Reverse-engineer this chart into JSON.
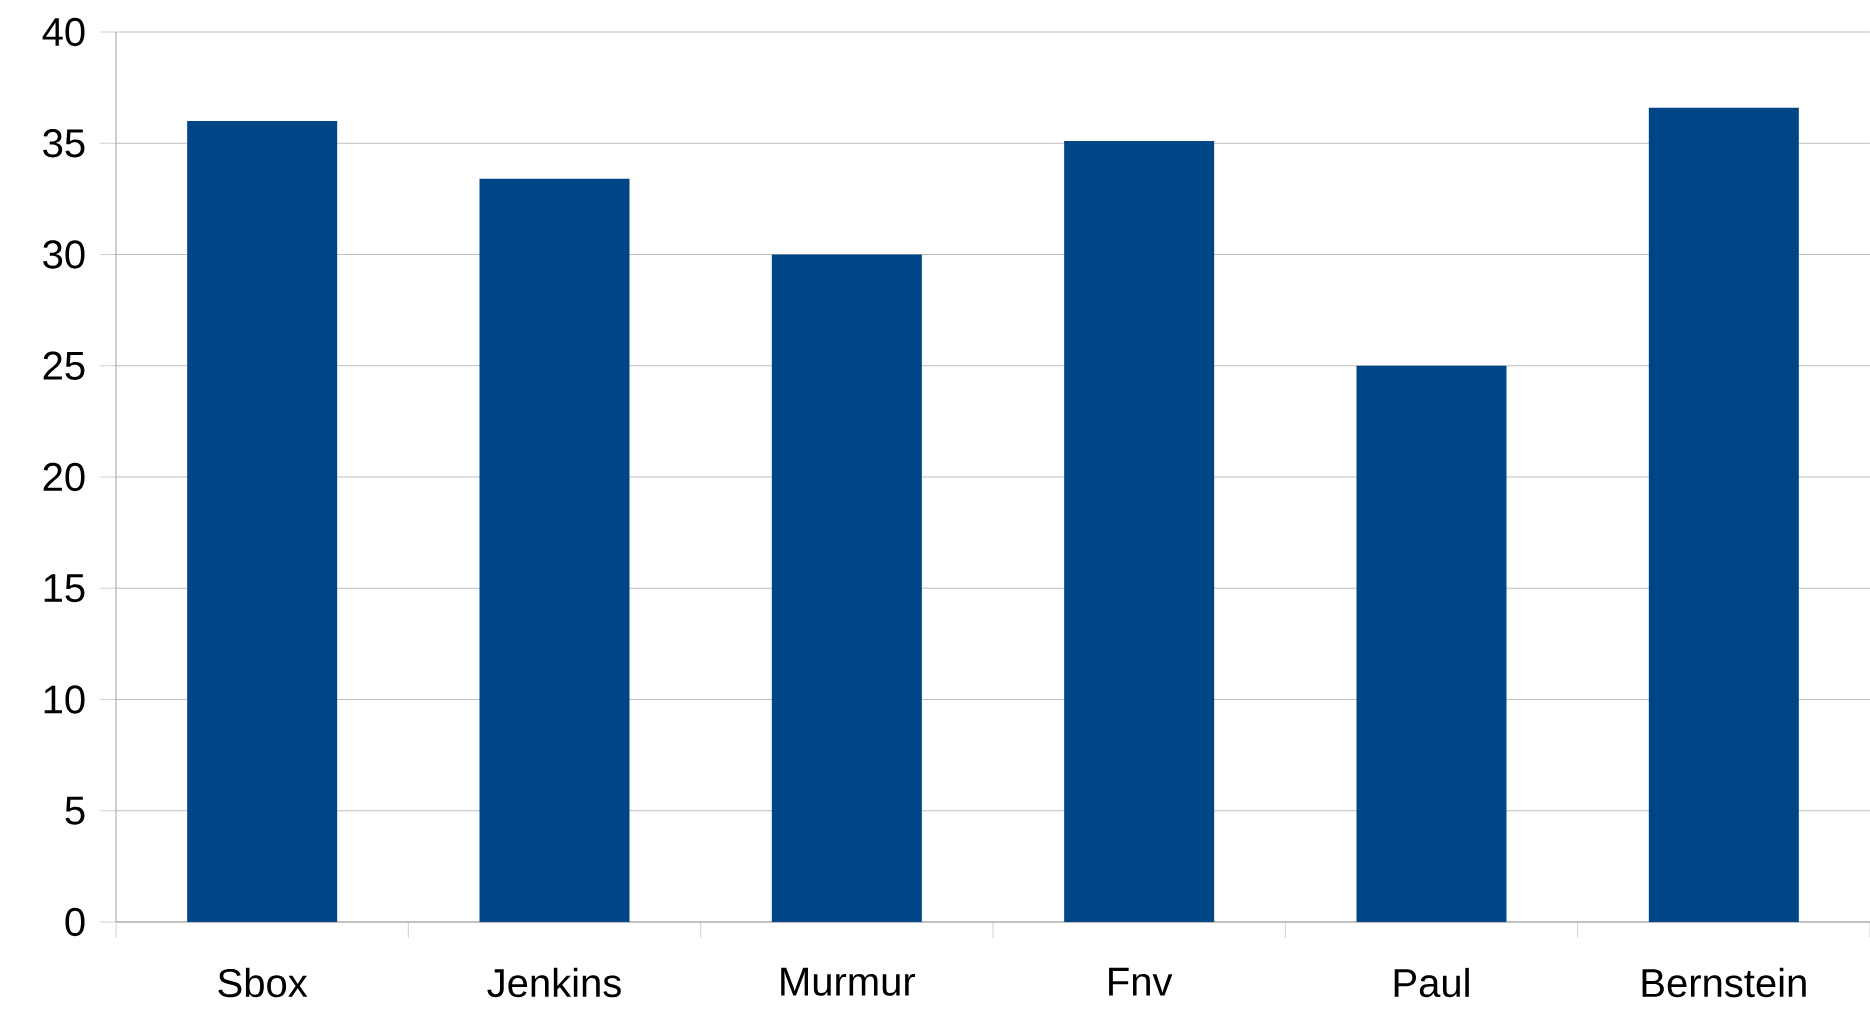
{
  "chart_data": {
    "type": "bar",
    "categories": [
      "Sbox",
      "Jenkins",
      "Murmur",
      "Fnv",
      "Paul",
      "Bernstein"
    ],
    "values": [
      36,
      33.4,
      30,
      35.1,
      25,
      36.6
    ],
    "color": "#004586",
    "ylim": [
      0,
      40
    ],
    "yticks": [
      0,
      5,
      10,
      15,
      20,
      25,
      30,
      35,
      40
    ],
    "grid": "y"
  }
}
